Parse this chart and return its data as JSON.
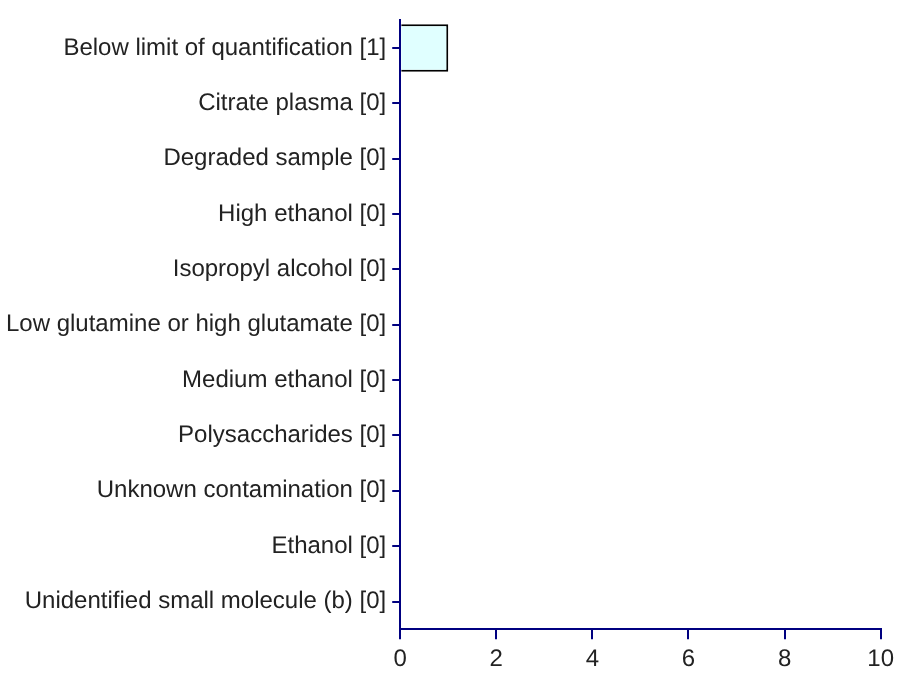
{
  "chart_data": {
    "type": "bar",
    "orientation": "horizontal",
    "categories": [
      "Below limit of quantification [1]",
      "Citrate plasma [0]",
      "Degraded sample [0]",
      "High ethanol [0]",
      "Isopropyl alcohol [0]",
      "Low glutamine or high glutamate [0]",
      "Medium ethanol [0]",
      "Polysaccharides [0]",
      "Unknown contamination [0]",
      "Ethanol [0]",
      "Unidentified small molecule (b) [0]"
    ],
    "values": [
      1,
      0,
      0,
      0,
      0,
      0,
      0,
      0,
      0,
      0,
      0
    ],
    "color": "#e0ffff",
    "xlim": [
      0,
      10
    ],
    "xticks": [
      0,
      2,
      4,
      6,
      8,
      10
    ],
    "grid": false,
    "legend": false
  }
}
